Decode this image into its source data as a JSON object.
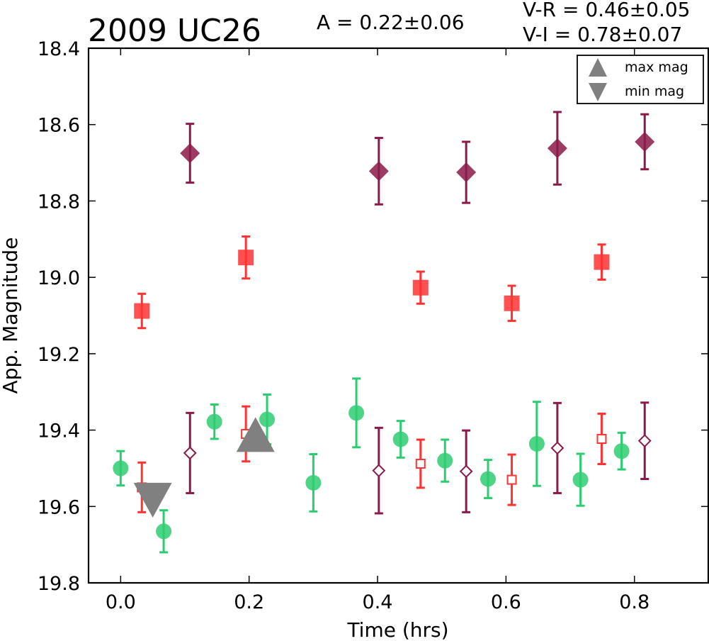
{
  "title": "2009 UC26",
  "amplitude_label": "A  = 0.22±0.06",
  "color_labels": [
    "V-R = 0.46±0.05",
    "V-I  = 0.78±0.07"
  ],
  "legend": {
    "max_label": "max mag",
    "min_label": "min mag",
    "placement": "top-right"
  },
  "colors": {
    "V": "#2ecc71",
    "R": "#ff3333",
    "I": "#8b1a4a",
    "marker": "#808080"
  },
  "chart_data": {
    "type": "scatter",
    "xlabel": "Time (hrs)",
    "ylabel": "App. Magnitude",
    "xlim": [
      -0.05,
      0.915
    ],
    "ylim": [
      19.8,
      18.4
    ],
    "y_inverted": true,
    "x_ticks": [
      "0.0",
      "0.2",
      "0.4",
      "0.6",
      "0.8"
    ],
    "y_ticks": [
      "18.4",
      "18.6",
      "18.8",
      "19.0",
      "19.2",
      "19.4",
      "19.6",
      "19.8"
    ],
    "series": [
      {
        "filled": true,
        "marker": "circle",
        "color": "V",
        "points": [
          {
            "x": 0.0,
            "y": 19.5,
            "err": 0.045
          },
          {
            "x": 0.067,
            "y": 19.665,
            "err": 0.055
          },
          {
            "x": 0.146,
            "y": 19.378,
            "err": 0.045
          },
          {
            "x": 0.228,
            "y": 19.372,
            "err": 0.065
          },
          {
            "x": 0.3,
            "y": 19.538,
            "err": 0.075
          },
          {
            "x": 0.367,
            "y": 19.355,
            "err": 0.09
          },
          {
            "x": 0.436,
            "y": 19.424,
            "err": 0.048
          },
          {
            "x": 0.505,
            "y": 19.48,
            "err": 0.055
          },
          {
            "x": 0.572,
            "y": 19.528,
            "err": 0.05
          },
          {
            "x": 0.648,
            "y": 19.436,
            "err": 0.11
          },
          {
            "x": 0.716,
            "y": 19.53,
            "err": 0.068
          },
          {
            "x": 0.78,
            "y": 19.455,
            "err": 0.048
          }
        ]
      },
      {
        "filled": true,
        "marker": "square",
        "color": "R",
        "points": [
          {
            "x": 0.033,
            "y": 19.088,
            "err": 0.045
          },
          {
            "x": 0.195,
            "y": 18.948,
            "err": 0.055
          },
          {
            "x": 0.467,
            "y": 19.027,
            "err": 0.042
          },
          {
            "x": 0.609,
            "y": 19.068,
            "err": 0.046
          },
          {
            "x": 0.749,
            "y": 18.96,
            "err": 0.046
          }
        ]
      },
      {
        "filled": true,
        "marker": "diamond",
        "color": "I",
        "points": [
          {
            "x": 0.108,
            "y": 18.675,
            "err": 0.077
          },
          {
            "x": 0.402,
            "y": 18.722,
            "err": 0.087
          },
          {
            "x": 0.538,
            "y": 18.725,
            "err": 0.08
          },
          {
            "x": 0.68,
            "y": 18.662,
            "err": 0.095
          },
          {
            "x": 0.816,
            "y": 18.645,
            "err": 0.072
          }
        ]
      },
      {
        "filled": false,
        "marker": "square",
        "color": "R",
        "points": [
          {
            "x": 0.033,
            "y": 19.55,
            "err": 0.065
          },
          {
            "x": 0.195,
            "y": 19.41,
            "err": 0.072
          },
          {
            "x": 0.467,
            "y": 19.488,
            "err": 0.063
          },
          {
            "x": 0.609,
            "y": 19.53,
            "err": 0.066
          },
          {
            "x": 0.749,
            "y": 19.423,
            "err": 0.066
          }
        ]
      },
      {
        "filled": false,
        "marker": "diamond",
        "color": "I",
        "points": [
          {
            "x": 0.108,
            "y": 19.46,
            "err": 0.105
          },
          {
            "x": 0.402,
            "y": 19.506,
            "err": 0.112
          },
          {
            "x": 0.538,
            "y": 19.508,
            "err": 0.107
          },
          {
            "x": 0.68,
            "y": 19.447,
            "err": 0.118
          },
          {
            "x": 0.816,
            "y": 19.428,
            "err": 0.1
          }
        ]
      }
    ],
    "extrema": [
      {
        "kind": "max",
        "x": 0.21,
        "y": 19.42
      },
      {
        "kind": "min",
        "x": 0.05,
        "y": 19.575
      }
    ]
  }
}
